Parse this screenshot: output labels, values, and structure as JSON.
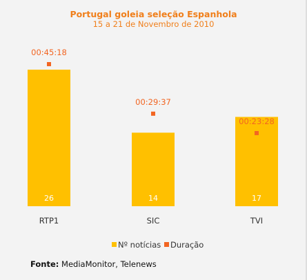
{
  "chart_data": {
    "type": "bar",
    "title": "Portugal goleia seleção Espanhola",
    "subtitle": "15 a 21 de Novembro de 2010",
    "categories": [
      "RTP1",
      "SIC",
      "TVI"
    ],
    "series": [
      {
        "name": "Nº notícias",
        "type": "bar",
        "values": [
          26,
          14,
          17
        ],
        "color": "#ffc000"
      },
      {
        "name": "Duração",
        "type": "scatter",
        "values": [
          "00:45:18",
          "00:29:37",
          "00:23:28"
        ],
        "seconds": [
          2718,
          1777,
          1408
        ],
        "color": "#f26522"
      }
    ],
    "legend": "bottom",
    "grid": false
  },
  "source": {
    "label": "Fonte:",
    "text": " MediaMonitor, Telenews"
  }
}
